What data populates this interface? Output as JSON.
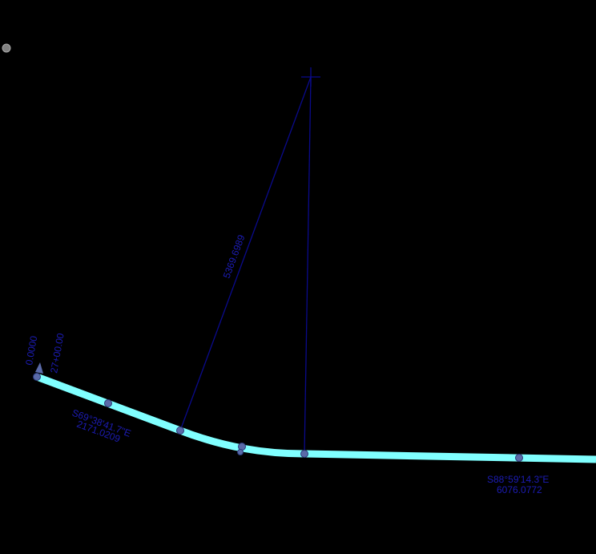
{
  "colors": {
    "background": "#000000",
    "alignment": "#80ffff",
    "radius_lines": "#0a0a8c",
    "labels": "#1c1cb4",
    "nodes": "#5a6aa8",
    "corner_dot": "#808080"
  },
  "labels": {
    "start_offset": "0.0000",
    "start_station": "27+00.00",
    "radius": "5369.6989",
    "tangent1_bearing": "S69°38'41.7\"E",
    "tangent1_length": "2171.0209",
    "tangent2_bearing": "S88°59'14.3\"E",
    "tangent2_length": "6076.0772"
  },
  "icons": {
    "center": "crosshair-icon",
    "direction": "arrowhead-icon"
  }
}
